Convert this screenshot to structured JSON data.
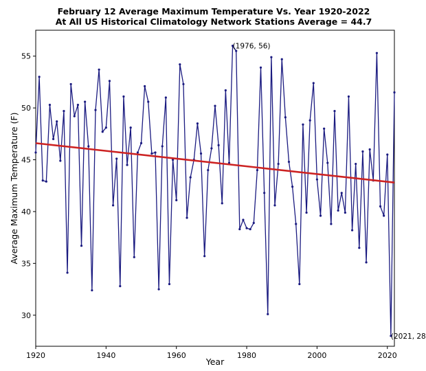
{
  "chart_data": {
    "type": "line",
    "title": "February 12 Average Maximum Temperature Vs. Year 1920-2022",
    "subtitle": "At All US Historical Climatology Network Stations Average = 44.7",
    "xlabel": "Year",
    "ylabel": "Average Maximum Temperature (F)",
    "xlim": [
      1920,
      2022
    ],
    "ylim": [
      27.0,
      57.5
    ],
    "xticks": [
      1920,
      1940,
      1960,
      1980,
      2000,
      2020
    ],
    "yticks": [
      30,
      35,
      40,
      45,
      50,
      55
    ],
    "grid": false,
    "legend": "none",
    "colors": {
      "series": "#1a1a80",
      "trend": "#cc2222"
    },
    "series": [
      {
        "values": [
          [
            1920,
            45.7
          ],
          [
            1921,
            53.0
          ],
          [
            1922,
            43.0
          ],
          [
            1923,
            42.9
          ],
          [
            1924,
            50.3
          ],
          [
            1925,
            47.0
          ],
          [
            1926,
            48.7
          ],
          [
            1927,
            44.9
          ],
          [
            1928,
            49.7
          ],
          [
            1929,
            34.1
          ],
          [
            1930,
            52.3
          ],
          [
            1931,
            49.2
          ],
          [
            1932,
            50.3
          ],
          [
            1933,
            36.7
          ],
          [
            1934,
            50.6
          ],
          [
            1935,
            46.3
          ],
          [
            1936,
            32.4
          ],
          [
            1937,
            49.8
          ],
          [
            1938,
            53.7
          ],
          [
            1939,
            47.7
          ],
          [
            1940,
            48.1
          ],
          [
            1941,
            52.6
          ],
          [
            1942,
            40.6
          ],
          [
            1943,
            45.1
          ],
          [
            1944,
            32.8
          ],
          [
            1945,
            51.1
          ],
          [
            1946,
            44.5
          ],
          [
            1947,
            48.1
          ],
          [
            1948,
            35.6
          ],
          [
            1949,
            45.7
          ],
          [
            1950,
            46.6
          ],
          [
            1951,
            52.1
          ],
          [
            1952,
            50.6
          ],
          [
            1953,
            45.6
          ],
          [
            1954,
            45.7
          ],
          [
            1955,
            32.5
          ],
          [
            1956,
            46.3
          ],
          [
            1957,
            51.0
          ],
          [
            1958,
            33.0
          ],
          [
            1959,
            45.0
          ],
          [
            1960,
            41.1
          ],
          [
            1961,
            54.2
          ],
          [
            1962,
            52.3
          ],
          [
            1963,
            39.4
          ],
          [
            1964,
            43.3
          ],
          [
            1965,
            45.0
          ],
          [
            1966,
            48.5
          ],
          [
            1967,
            45.6
          ],
          [
            1968,
            35.7
          ],
          [
            1969,
            44.0
          ],
          [
            1970,
            46.1
          ],
          [
            1971,
            50.2
          ],
          [
            1972,
            46.4
          ],
          [
            1973,
            40.8
          ],
          [
            1974,
            51.7
          ],
          [
            1975,
            44.7
          ],
          [
            1976,
            56.0
          ],
          [
            1977,
            55.5
          ],
          [
            1978,
            38.3
          ],
          [
            1979,
            39.2
          ],
          [
            1980,
            38.4
          ],
          [
            1981,
            38.3
          ],
          [
            1982,
            38.9
          ],
          [
            1983,
            44.0
          ],
          [
            1984,
            53.9
          ],
          [
            1985,
            41.8
          ],
          [
            1986,
            30.1
          ],
          [
            1987,
            54.9
          ],
          [
            1988,
            40.6
          ],
          [
            1989,
            44.6
          ],
          [
            1990,
            54.7
          ],
          [
            1991,
            49.1
          ],
          [
            1992,
            44.8
          ],
          [
            1993,
            42.4
          ],
          [
            1994,
            38.8
          ],
          [
            1995,
            33.0
          ],
          [
            1996,
            48.4
          ],
          [
            1997,
            39.9
          ],
          [
            1998,
            48.8
          ],
          [
            1999,
            52.4
          ],
          [
            2000,
            43.1
          ],
          [
            2001,
            39.6
          ],
          [
            2002,
            48.0
          ],
          [
            2003,
            44.7
          ],
          [
            2004,
            38.8
          ],
          [
            2005,
            49.7
          ],
          [
            2006,
            40.1
          ],
          [
            2007,
            41.8
          ],
          [
            2008,
            39.9
          ],
          [
            2009,
            51.1
          ],
          [
            2010,
            38.2
          ],
          [
            2011,
            44.6
          ],
          [
            2012,
            36.5
          ],
          [
            2013,
            45.8
          ],
          [
            2014,
            35.1
          ],
          [
            2015,
            46.0
          ],
          [
            2016,
            43.0
          ],
          [
            2017,
            55.3
          ],
          [
            2018,
            40.5
          ],
          [
            2019,
            39.6
          ],
          [
            2020,
            45.5
          ],
          [
            2021,
            28.0
          ],
          [
            2022,
            51.5
          ]
        ]
      }
    ],
    "trendline": {
      "x": [
        1920,
        2022
      ],
      "y": [
        46.6,
        42.8
      ]
    },
    "annotations": [
      {
        "text": "(1976, 56)",
        "x": 1976,
        "y": 56
      },
      {
        "text": "(2021, 28)",
        "x": 2021,
        "y": 28
      }
    ]
  }
}
